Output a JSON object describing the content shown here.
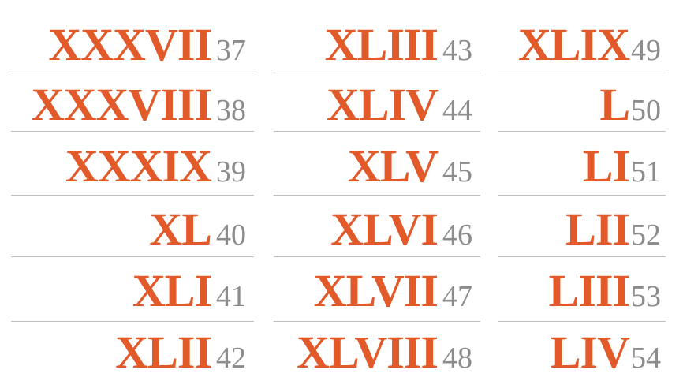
{
  "columns": [
    {
      "entries": [
        {
          "roman": "XXXVII",
          "arabic": "37"
        },
        {
          "roman": "XXXVIII",
          "arabic": "38"
        },
        {
          "roman": "XXXIX",
          "arabic": "39"
        },
        {
          "roman": "XL",
          "arabic": "40"
        },
        {
          "roman": "XLI",
          "arabic": "41"
        },
        {
          "roman": "XLII",
          "arabic": "42"
        }
      ]
    },
    {
      "entries": [
        {
          "roman": "XLIII",
          "arabic": "43"
        },
        {
          "roman": "XLIV",
          "arabic": "44"
        },
        {
          "roman": "XLV",
          "arabic": "45"
        },
        {
          "roman": "XLVI",
          "arabic": "46"
        },
        {
          "roman": "XLVII",
          "arabic": "47"
        },
        {
          "roman": "XLVIII",
          "arabic": "48"
        }
      ]
    },
    {
      "entries": [
        {
          "roman": "XLIX",
          "arabic": "49"
        },
        {
          "roman": "L",
          "arabic": "50"
        },
        {
          "roman": "LI",
          "arabic": "51"
        },
        {
          "roman": "LII",
          "arabic": "52"
        },
        {
          "roman": "LIII",
          "arabic": "53"
        },
        {
          "roman": "LIV",
          "arabic": "54"
        }
      ]
    }
  ],
  "colors": {
    "roman": "#e35a2a",
    "arabic": "#8c8c8c",
    "divider": "#bfbfbf"
  }
}
